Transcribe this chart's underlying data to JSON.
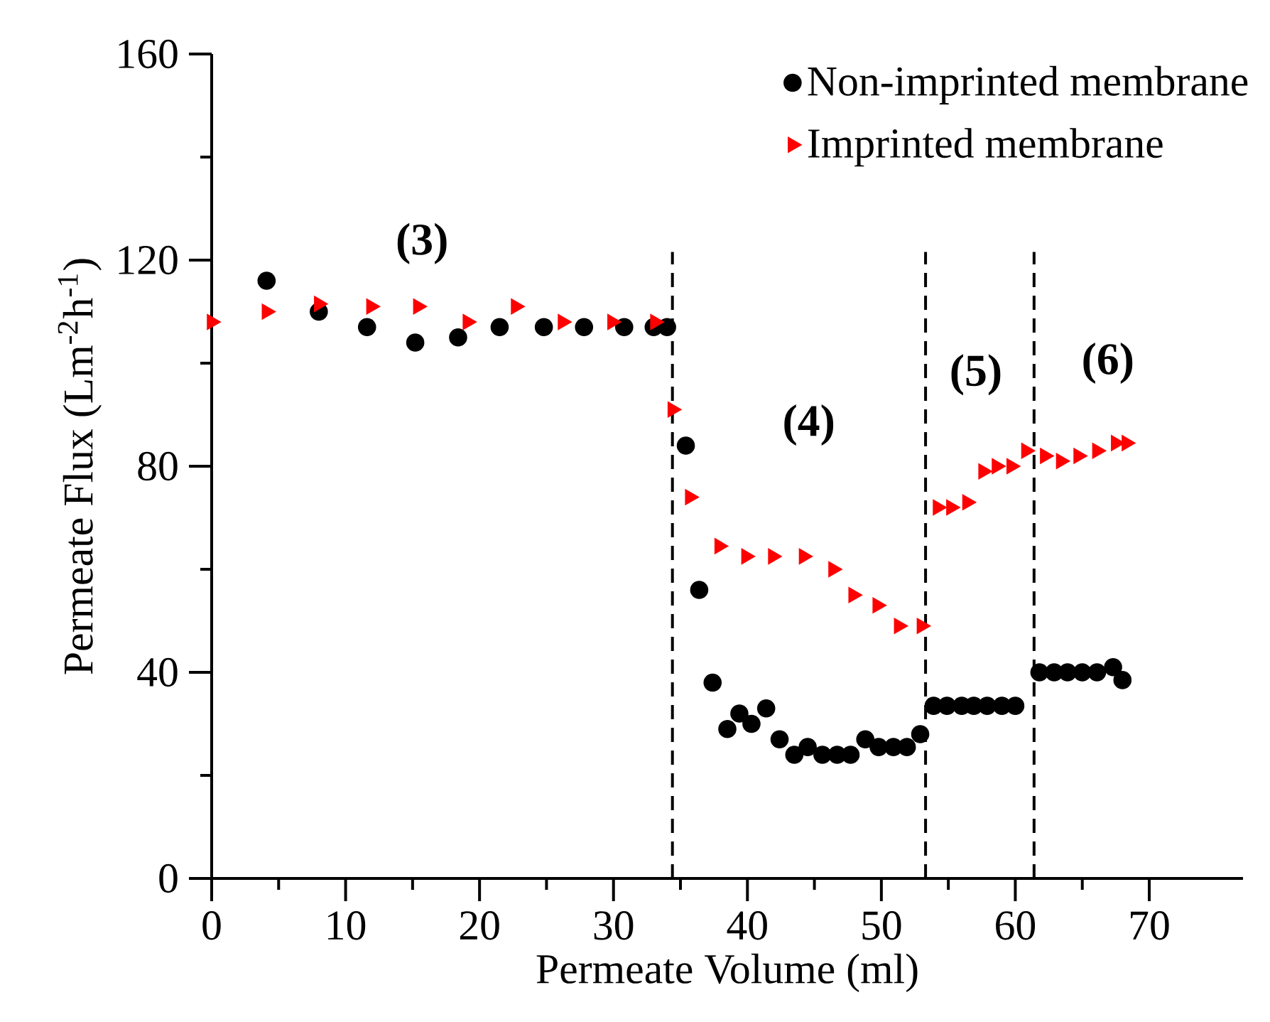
{
  "chart_data": {
    "type": "scatter",
    "xlabel": "Permeate Volume (ml)",
    "ylabel": "Permeate Flux (Lm$^{-2}$h$^{-1}$)",
    "xlim": [
      0,
      77
    ],
    "ylim": [
      0,
      160
    ],
    "xticks": [
      0,
      10,
      20,
      30,
      40,
      50,
      60,
      70
    ],
    "yticks": [
      0,
      40,
      80,
      120,
      160
    ],
    "legend": "top right",
    "grid": false,
    "series": [
      {
        "name": "Non-imprinted membrane",
        "color": "#000000",
        "marker": "circle",
        "x": [
          4.1,
          8.0,
          11.6,
          15.2,
          18.4,
          21.5,
          24.8,
          27.8,
          30.8,
          33.0,
          34.0,
          35.4,
          36.4,
          37.4,
          38.5,
          39.4,
          40.3,
          41.4,
          42.4,
          43.5,
          44.5,
          45.6,
          46.7,
          47.7,
          48.8,
          49.8,
          50.9,
          51.9,
          52.9,
          53.9,
          54.9,
          56.0,
          56.9,
          57.9,
          59.0,
          60.0,
          61.8,
          62.9,
          63.9,
          65.0,
          66.1,
          67.3,
          68.0
        ],
        "values": [
          116,
          110,
          107,
          104,
          105,
          107,
          107,
          107,
          107,
          107,
          107,
          84,
          56,
          38,
          29,
          32,
          30,
          33,
          27,
          24,
          25.5,
          24,
          24,
          24,
          27,
          25.5,
          25.5,
          25.5,
          28,
          33.5,
          33.5,
          33.5,
          33.5,
          33.5,
          33.5,
          33.5,
          40,
          40,
          40,
          40,
          40,
          41,
          38.5
        ]
      },
      {
        "name": "Imprinted membrane",
        "color": "#ff0000",
        "marker": "triangle",
        "x": [
          0,
          4.1,
          8.0,
          11.9,
          15.4,
          19.1,
          22.7,
          26.2,
          29.9,
          33.1,
          34.4,
          35.7,
          37.9,
          39.9,
          41.9,
          44.2,
          46.4,
          47.9,
          49.7,
          51.3,
          53.0,
          54.2,
          55.2,
          56.4,
          57.6,
          58.6,
          59.7,
          60.8,
          62.2,
          63.4,
          64.7,
          66.1,
          67.5,
          68.3
        ],
        "values": [
          108,
          110,
          111.5,
          111,
          111,
          108,
          111,
          108,
          108,
          108,
          91,
          74,
          64.5,
          62.5,
          62.5,
          62.5,
          60,
          55,
          53,
          49,
          49,
          72,
          72,
          73,
          79,
          80,
          80,
          83,
          82,
          81,
          82,
          83,
          84.5,
          84.5
        ]
      }
    ],
    "ref_lines": [
      {
        "axis": "x",
        "value": 34.4,
        "color": "#000000",
        "line_style": "dashed"
      },
      {
        "axis": "x",
        "value": 53.3,
        "color": "#000000",
        "line_style": "dashed"
      },
      {
        "axis": "x",
        "value": 61.4,
        "color": "#000000",
        "line_style": "dashed"
      }
    ],
    "annotations": [
      "**(3)**",
      "**(4)**",
      "**(5)**",
      "**(6)**"
    ]
  }
}
